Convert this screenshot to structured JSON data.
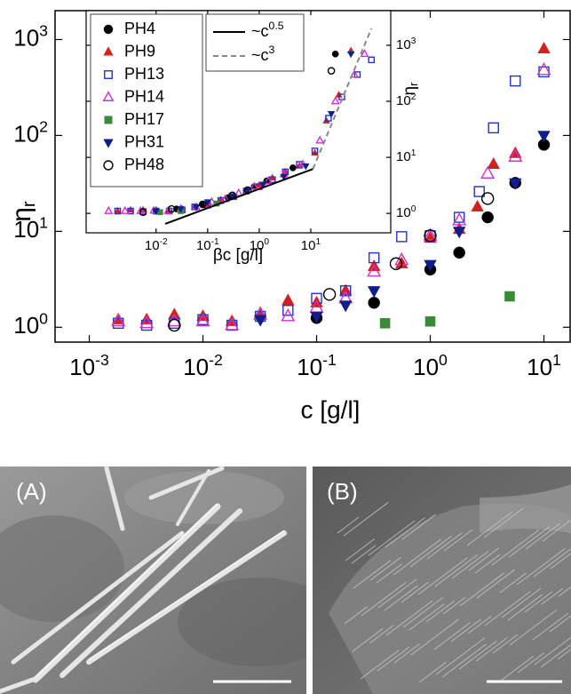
{
  "chart_data": [
    {
      "type": "scatter",
      "x_label": "c [g/l]",
      "y_label": "η_r",
      "log_x": true,
      "log_y": true,
      "xlim": [
        0.0005,
        17
      ],
      "ylim": [
        0.7,
        2000
      ],
      "xticks": [
        {
          "value": 0.001,
          "label": "10^-3"
        },
        {
          "value": 0.01,
          "label": "10^-2"
        },
        {
          "value": 0.1,
          "label": "10^-1"
        },
        {
          "value": 1,
          "label": "10^0"
        },
        {
          "value": 10,
          "label": "10^1"
        }
      ],
      "yticks": [
        {
          "value": 1,
          "label": "10^0"
        },
        {
          "value": 10,
          "label": "10^1"
        },
        {
          "value": 100,
          "label": "10^2"
        },
        {
          "value": 1000,
          "label": "10^3"
        }
      ],
      "series": [
        {
          "name": "PH4",
          "color": "#000000",
          "marker": "o",
          "filled": true,
          "x": [
            0.1,
            0.32,
            1,
            1.8,
            3.2,
            5.6,
            10
          ],
          "values": [
            1.25,
            1.8,
            4,
            6,
            14,
            32,
            80
          ]
        },
        {
          "name": "PH9",
          "color": "#d42020",
          "marker": "^",
          "filled": true,
          "x": [
            0.0018,
            0.0032,
            0.0056,
            0.01,
            0.018,
            0.032,
            0.056,
            0.1,
            0.18,
            0.32,
            0.56,
            1,
            1.8,
            2.6,
            3.6,
            5.6,
            10
          ],
          "values": [
            1.2,
            1.2,
            1.35,
            1.3,
            1.15,
            1.4,
            1.9,
            1.8,
            2.4,
            4.3,
            4.6,
            8.5,
            10.5,
            18,
            50,
            65,
            800
          ]
        },
        {
          "name": "PH13",
          "color": "#2233cc",
          "marker": "s",
          "filled": false,
          "x": [
            0.0018,
            0.0032,
            0.0056,
            0.01,
            0.018,
            0.032,
            0.056,
            0.1,
            0.18,
            0.32,
            0.56,
            1,
            1.8,
            2.7,
            3.6,
            5.6,
            10
          ],
          "values": [
            1.1,
            1.05,
            1.1,
            1.2,
            1.05,
            1.3,
            1.5,
            2.0,
            2.4,
            5.3,
            8.8,
            9,
            14,
            26,
            120,
            370,
            460
          ]
        },
        {
          "name": "PH14",
          "color": "#cc33cc",
          "marker": "^",
          "filled": false,
          "x": [
            0.0018,
            0.0032,
            0.0056,
            0.01,
            0.018,
            0.032,
            0.056,
            0.1,
            0.18,
            0.32,
            0.56,
            1,
            1.8,
            3.2,
            5.6,
            10
          ],
          "values": [
            1.15,
            1.1,
            1.15,
            1.15,
            1.05,
            1.35,
            1.3,
            1.6,
            2.0,
            3.8,
            5.0,
            9.0,
            13,
            40,
            60,
            480
          ]
        },
        {
          "name": "PH17",
          "color": "#3a8a3a",
          "marker": "s",
          "filled": true,
          "x": [
            0.4,
            1,
            5
          ],
          "values": [
            1.1,
            1.15,
            2.1
          ]
        },
        {
          "name": "PH31",
          "color": "#101e8c",
          "marker": "v",
          "filled": true,
          "x": [
            0.032,
            0.1,
            0.18,
            0.32,
            1,
            1.8,
            5.6,
            10
          ],
          "values": [
            1.2,
            1.3,
            1.7,
            2.4,
            4.5,
            10,
            32,
            100
          ]
        },
        {
          "name": "PH48",
          "color": "#000000",
          "marker": "o",
          "filled": false,
          "x": [
            0.0056,
            0.13,
            0.5,
            1,
            3.2
          ],
          "values": [
            1.05,
            2.2,
            4.6,
            9,
            22
          ]
        }
      ]
    },
    {
      "type": "scatter",
      "x_label": "βc [g/l]",
      "y_label": "η_r",
      "log_x": true,
      "log_y": true,
      "xlim": [
        0.00044,
        355
      ],
      "ylim": [
        0.45,
        4150
      ],
      "xticks": [
        {
          "value": 0.01,
          "label": "10^-2"
        },
        {
          "value": 0.1,
          "label": "10^-1"
        },
        {
          "value": 1,
          "label": "10^0"
        },
        {
          "value": 10,
          "label": "10^1"
        }
      ],
      "yticks": [
        {
          "value": 1,
          "label": "10^0"
        },
        {
          "value": 10,
          "label": "10^1"
        },
        {
          "value": 100,
          "label": "10^2"
        },
        {
          "value": 1000,
          "label": "10^3"
        }
      ],
      "series": [
        {
          "color": "#000000",
          "marker": "o",
          "filled": true,
          "x": [
            0.025,
            0.08,
            0.25,
            0.8,
            1.4,
            4.5,
            30
          ],
          "values": [
            1.2,
            1.45,
            1.9,
            3.0,
            3.8,
            6.5,
            700
          ]
        },
        {
          "color": "#d42020",
          "marker": "^",
          "filled": true,
          "x": [
            0.0018,
            0.0032,
            0.0056,
            0.01,
            0.018,
            0.032,
            0.056,
            0.1,
            0.18,
            0.32,
            0.56,
            1,
            1.8,
            3.2,
            6,
            12,
            20,
            35,
            60
          ],
          "values": [
            1.1,
            1.15,
            1.15,
            1.15,
            1.1,
            1.2,
            1.3,
            1.45,
            1.75,
            2.1,
            2.6,
            3.2,
            4.3,
            5.5,
            7,
            12,
            45,
            130,
            800
          ]
        },
        {
          "color": "#2233cc",
          "marker": "s",
          "filled": false,
          "x": [
            0.0018,
            0.0032,
            0.0056,
            0.01,
            0.018,
            0.032,
            0.056,
            0.1,
            0.18,
            0.32,
            0.56,
            1,
            1.8,
            3.2,
            6,
            12,
            22,
            40,
            80,
            150
          ],
          "values": [
            1.1,
            1.1,
            1.08,
            1.1,
            1.1,
            1.15,
            1.3,
            1.4,
            1.7,
            2.0,
            2.5,
            3.0,
            4.0,
            5.5,
            7.5,
            13,
            50,
            120,
            300,
            550
          ]
        },
        {
          "color": "#cc33cc",
          "marker": "^",
          "filled": false,
          "x": [
            0.0012,
            0.0025,
            0.005,
            0.009,
            0.017,
            0.03,
            0.06,
            0.12,
            0.22,
            0.4,
            0.8,
            1.5,
            3,
            7,
            15,
            30,
            70,
            110
          ],
          "values": [
            1.1,
            1.1,
            1.1,
            1.12,
            1.1,
            1.2,
            1.3,
            1.6,
            1.8,
            2.3,
            3.0,
            3.8,
            5,
            7.5,
            20,
            100,
            300,
            700
          ]
        },
        {
          "color": "#3a8a3a",
          "marker": "s",
          "filled": true,
          "x": [
            0.012,
            0.03,
            0.15
          ],
          "values": [
            1.05,
            1.1,
            1.5
          ]
        },
        {
          "color": "#101e8c",
          "marker": "v",
          "filled": true,
          "x": [
            0.01,
            0.03,
            0.06,
            0.1,
            0.3,
            0.6,
            1.2,
            3,
            8,
            25,
            60
          ],
          "values": [
            1.1,
            1.2,
            1.3,
            1.6,
            2.0,
            2.6,
            3.3,
            4.5,
            7,
            60,
            700
          ]
        },
        {
          "color": "#000000",
          "marker": "o",
          "filled": false,
          "x": [
            0.0056,
            0.02,
            0.08,
            0.3,
            0.6,
            25
          ],
          "values": [
            1.05,
            1.2,
            1.45,
            2.1,
            2.6,
            350
          ]
        },
        {
          "name": "~c^0.5",
          "color": "#000000",
          "style": "solid",
          "x": [
            0.015,
            11
          ],
          "values": [
            0.65,
            6.2
          ]
        },
        {
          "name": "~c^3",
          "color": "#888888",
          "style": "dashed",
          "x": [
            11,
            150
          ],
          "values": [
            6.2,
            2000
          ]
        }
      ]
    }
  ],
  "panels": [
    {
      "label": "(A)"
    },
    {
      "label": "(B)"
    }
  ]
}
